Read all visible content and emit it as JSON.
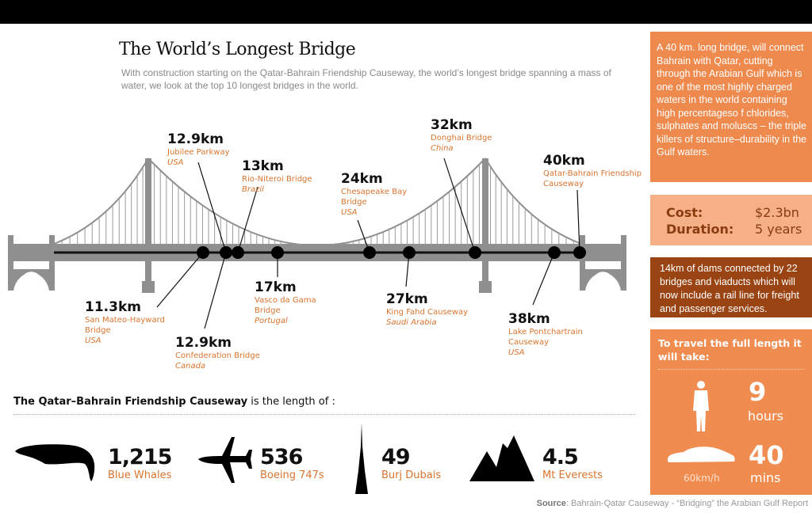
{
  "header": {
    "title": "The World’s Longest Bridge",
    "subtitle": "With construction starting on the Qatar-Bahrain Friendship Causeway, the world’s longest bridge spanning a mass of water, we look at the top 10 longest bridges in the world."
  },
  "bridges": [
    {
      "length": "11.3km",
      "name": "San Mateo-Hayward Bridge",
      "country": "USA",
      "km": 11.3
    },
    {
      "length": "12.9km",
      "name": "Jubilee Parkway",
      "country": "USA",
      "km": 12.9
    },
    {
      "length": "12.9km",
      "name": "Confederation Bridge",
      "country": "Canada",
      "km": 12.9
    },
    {
      "length": "13km",
      "name": "Rio-Niteroi Bridge",
      "country": "Brazil",
      "km": 13
    },
    {
      "length": "17km",
      "name": "Vasco da Gama Bridge",
      "country": "Portugal",
      "km": 17
    },
    {
      "length": "24km",
      "name": "Chesapeake Bay Bridge",
      "country": "USA",
      "km": 24
    },
    {
      "length": "27km",
      "name": "King Fahd Causeway",
      "country": "Saudi Arabia",
      "km": 27
    },
    {
      "length": "32km",
      "name": "Donghai Bridge",
      "country": "China",
      "km": 32
    },
    {
      "length": "38km",
      "name": "Lake Pontchartrain Causeway",
      "country": "USA",
      "km": 38
    },
    {
      "length": "40km",
      "name": "Qatar-Bahrain Friendship Causeway",
      "country": "",
      "km": 40
    }
  ],
  "sidebar": {
    "intro": "A 40 km. long bridge, will connect Bahrain with Qatar, cutting through the Arabian Gulf which is one of the most highly charged waters in the world containing high percentageso f chlorides, sulphates and moluscs – the triple killers of structure–durability in the Gulf waters.",
    "cost_label": "Cost:",
    "cost_value": "$2.3bn",
    "duration_label": "Duration:",
    "duration_value": "5 years",
    "dams": "14km of dams connected by 22 bridges and viaducts which will now include a rail line for freight and passenger services.",
    "travel_heading": "To travel the full length it will take:",
    "walk_value": "9",
    "walk_unit": "hours",
    "car_value": "40",
    "car_unit": "mins",
    "car_speed": "60km/h"
  },
  "comparison": {
    "heading_bold": "The Qatar–Bahrain Friendship Causeway",
    "heading_rest": " is the length of :",
    "items": [
      {
        "value": "1,215",
        "label": "Blue Whales",
        "icon": "whale-icon"
      },
      {
        "value": "536",
        "label": "Boeing 747s",
        "icon": "airplane-icon"
      },
      {
        "value": "49",
        "label": "Burj Dubais",
        "icon": "tower-icon"
      },
      {
        "value": "4.5",
        "label": "Mt Everests",
        "icon": "mountain-icon"
      }
    ]
  },
  "source": {
    "label": "Source",
    "text": ": Bahrain-Qatar Causeway - “Bridging” the Arabian Gulf Report"
  },
  "colors": {
    "orange": "#ef8a4e",
    "light": "#f5b088",
    "brown": "#9a4414",
    "label": "#d9742f"
  }
}
